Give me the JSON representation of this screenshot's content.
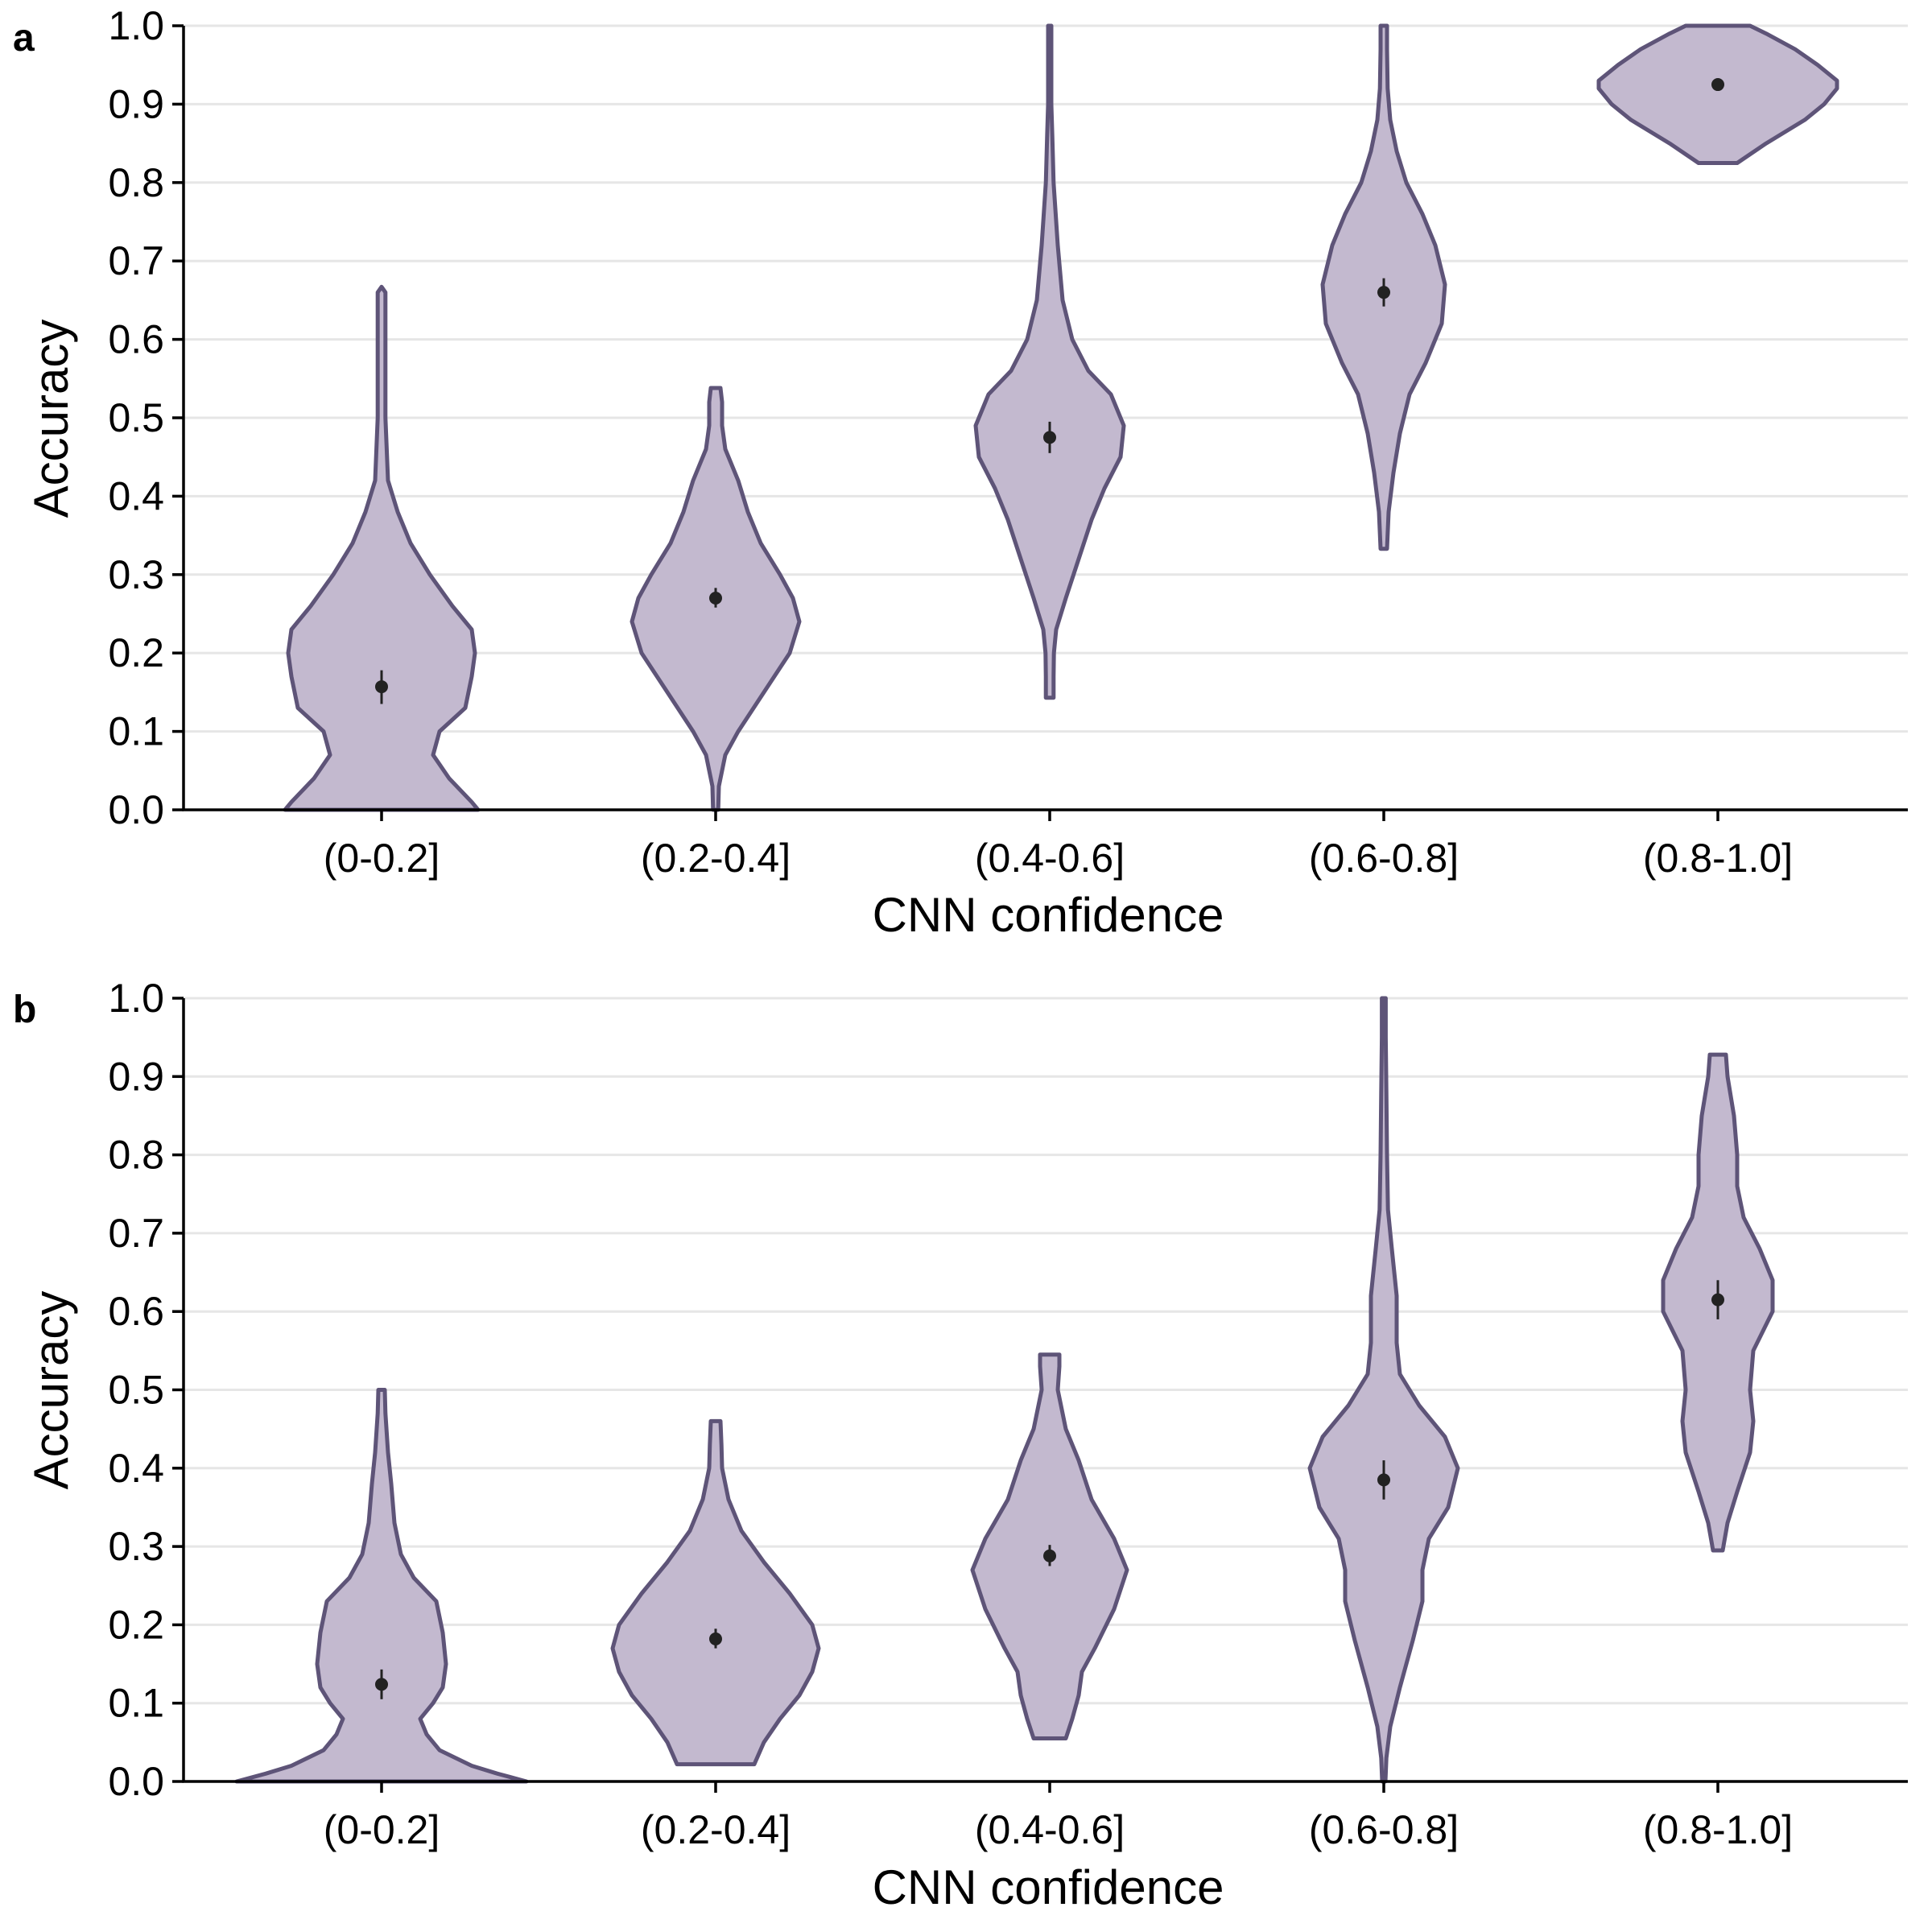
{
  "colors": {
    "violin_fill": "#c3b9cf",
    "violin_stroke": "#5e5478",
    "point": "#222222",
    "grid": "#e6e6e6"
  },
  "chart_data": [
    {
      "panel": "a",
      "type": "violin",
      "xlabel": "CNN confidence",
      "ylabel": "Accuracy",
      "ylim": [
        0,
        1
      ],
      "yticks": [
        0.0,
        0.1,
        0.2,
        0.3,
        0.4,
        0.5,
        0.6,
        0.7,
        0.8,
        0.9,
        1.0
      ],
      "ytick_labels": [
        "0.0",
        "0.1",
        "0.2",
        "0.3",
        "0.4",
        "0.5",
        "0.6",
        "0.7",
        "0.8",
        "0.9",
        "1.0"
      ],
      "grid": "horizontal",
      "categories": [
        "(0-0.2]",
        "(0.2-0.4]",
        "(0.4-0.6]",
        "(0.6-0.8]",
        "(0.8-1.0]"
      ],
      "series": [
        {
          "category": "(0-0.2]",
          "mean": 0.157,
          "ci": [
            0.135,
            0.178
          ],
          "violin": [
            [
              0.0,
              0.3
            ],
            [
              0.01,
              0.28
            ],
            [
              0.04,
              0.21
            ],
            [
              0.07,
              0.16
            ],
            [
              0.1,
              0.18
            ],
            [
              0.13,
              0.26
            ],
            [
              0.17,
              0.28
            ],
            [
              0.2,
              0.29
            ],
            [
              0.23,
              0.28
            ],
            [
              0.26,
              0.22
            ],
            [
              0.3,
              0.15
            ],
            [
              0.34,
              0.09
            ],
            [
              0.38,
              0.05
            ],
            [
              0.42,
              0.02
            ],
            [
              0.5,
              0.012
            ],
            [
              0.6,
              0.012
            ],
            [
              0.66,
              0.012
            ],
            [
              0.667,
              0.0
            ]
          ]
        },
        {
          "category": "(0.2-0.4]",
          "mean": 0.27,
          "ci": [
            0.258,
            0.283
          ],
          "violin": [
            [
              0.0,
              0.008
            ],
            [
              0.03,
              0.01
            ],
            [
              0.07,
              0.03
            ],
            [
              0.1,
              0.07
            ],
            [
              0.15,
              0.15
            ],
            [
              0.2,
              0.23
            ],
            [
              0.24,
              0.26
            ],
            [
              0.27,
              0.24
            ],
            [
              0.3,
              0.2
            ],
            [
              0.34,
              0.14
            ],
            [
              0.38,
              0.1
            ],
            [
              0.42,
              0.07
            ],
            [
              0.46,
              0.03
            ],
            [
              0.49,
              0.02
            ],
            [
              0.52,
              0.02
            ],
            [
              0.538,
              0.015
            ]
          ]
        },
        {
          "category": "(0.4-0.6]",
          "mean": 0.475,
          "ci": [
            0.455,
            0.495
          ],
          "violin": [
            [
              0.143,
              0.012
            ],
            [
              0.17,
              0.012
            ],
            [
              0.2,
              0.013
            ],
            [
              0.23,
              0.02
            ],
            [
              0.27,
              0.05
            ],
            [
              0.32,
              0.09
            ],
            [
              0.37,
              0.13
            ],
            [
              0.41,
              0.17
            ],
            [
              0.45,
              0.22
            ],
            [
              0.49,
              0.23
            ],
            [
              0.53,
              0.19
            ],
            [
              0.56,
              0.12
            ],
            [
              0.6,
              0.07
            ],
            [
              0.65,
              0.04
            ],
            [
              0.72,
              0.025
            ],
            [
              0.8,
              0.012
            ],
            [
              0.86,
              0.008
            ],
            [
              0.9,
              0.005
            ],
            [
              1.0,
              0.005
            ]
          ]
        },
        {
          "category": "(0.6-0.8]",
          "mean": 0.66,
          "ci": [
            0.642,
            0.678
          ],
          "violin": [
            [
              0.333,
              0.01
            ],
            [
              0.38,
              0.015
            ],
            [
              0.43,
              0.03
            ],
            [
              0.48,
              0.05
            ],
            [
              0.53,
              0.08
            ],
            [
              0.57,
              0.13
            ],
            [
              0.62,
              0.18
            ],
            [
              0.67,
              0.19
            ],
            [
              0.72,
              0.16
            ],
            [
              0.76,
              0.12
            ],
            [
              0.8,
              0.07
            ],
            [
              0.84,
              0.04
            ],
            [
              0.88,
              0.02
            ],
            [
              0.92,
              0.012
            ],
            [
              0.97,
              0.01
            ],
            [
              1.0,
              0.01
            ]
          ]
        },
        {
          "category": "(0.8-1.0]",
          "mean": 0.925,
          "ci": [
            0.918,
            0.931
          ],
          "violin": [
            [
              0.825,
              0.06
            ],
            [
              0.85,
              0.15
            ],
            [
              0.88,
              0.27
            ],
            [
              0.9,
              0.33
            ],
            [
              0.92,
              0.37
            ],
            [
              0.93,
              0.37
            ],
            [
              0.95,
              0.31
            ],
            [
              0.97,
              0.24
            ],
            [
              0.99,
              0.15
            ],
            [
              1.0,
              0.1
            ]
          ]
        }
      ]
    },
    {
      "panel": "b",
      "type": "violin",
      "xlabel": "CNN confidence",
      "ylabel": "Accuracy",
      "ylim": [
        0,
        1
      ],
      "yticks": [
        0.0,
        0.1,
        0.2,
        0.3,
        0.4,
        0.5,
        0.6,
        0.7,
        0.8,
        0.9,
        1.0
      ],
      "ytick_labels": [
        "0.0",
        "0.1",
        "0.2",
        "0.3",
        "0.4",
        "0.5",
        "0.6",
        "0.7",
        "0.8",
        "0.9",
        "1.0"
      ],
      "grid": "horizontal",
      "categories": [
        "(0-0.2]",
        "(0.2-0.4]",
        "(0.4-0.6]",
        "(0.6-0.8]",
        "(0.8-1.0]"
      ],
      "series": [
        {
          "category": "(0-0.2]",
          "mean": 0.124,
          "ci": [
            0.105,
            0.143
          ],
          "violin": [
            [
              0.0,
              0.45
            ],
            [
              0.01,
              0.36
            ],
            [
              0.02,
              0.28
            ],
            [
              0.04,
              0.18
            ],
            [
              0.06,
              0.14
            ],
            [
              0.08,
              0.12
            ],
            [
              0.1,
              0.16
            ],
            [
              0.12,
              0.19
            ],
            [
              0.15,
              0.2
            ],
            [
              0.19,
              0.19
            ],
            [
              0.23,
              0.17
            ],
            [
              0.26,
              0.1
            ],
            [
              0.29,
              0.06
            ],
            [
              0.33,
              0.04
            ],
            [
              0.38,
              0.03
            ],
            [
              0.42,
              0.02
            ],
            [
              0.47,
              0.012
            ],
            [
              0.5,
              0.01
            ]
          ]
        },
        {
          "category": "(0.2-0.4]",
          "mean": 0.182,
          "ci": [
            0.17,
            0.195
          ],
          "violin": [
            [
              0.022,
              0.12
            ],
            [
              0.05,
              0.15
            ],
            [
              0.08,
              0.2
            ],
            [
              0.11,
              0.26
            ],
            [
              0.14,
              0.3
            ],
            [
              0.17,
              0.32
            ],
            [
              0.2,
              0.3
            ],
            [
              0.24,
              0.23
            ],
            [
              0.28,
              0.15
            ],
            [
              0.32,
              0.08
            ],
            [
              0.36,
              0.04
            ],
            [
              0.4,
              0.02
            ],
            [
              0.43,
              0.018
            ],
            [
              0.46,
              0.015
            ]
          ]
        },
        {
          "category": "(0.4-0.6]",
          "mean": 0.288,
          "ci": [
            0.275,
            0.302
          ],
          "violin": [
            [
              0.055,
              0.05
            ],
            [
              0.08,
              0.07
            ],
            [
              0.11,
              0.09
            ],
            [
              0.14,
              0.1
            ],
            [
              0.17,
              0.14
            ],
            [
              0.22,
              0.2
            ],
            [
              0.27,
              0.24
            ],
            [
              0.31,
              0.2
            ],
            [
              0.36,
              0.13
            ],
            [
              0.41,
              0.09
            ],
            [
              0.45,
              0.05
            ],
            [
              0.5,
              0.025
            ],
            [
              0.53,
              0.03
            ],
            [
              0.545,
              0.03
            ]
          ]
        },
        {
          "category": "(0.6-0.8]",
          "mean": 0.385,
          "ci": [
            0.36,
            0.41
          ],
          "violin": [
            [
              0.0,
              0.005
            ],
            [
              0.03,
              0.008
            ],
            [
              0.07,
              0.02
            ],
            [
              0.12,
              0.05
            ],
            [
              0.18,
              0.09
            ],
            [
              0.23,
              0.12
            ],
            [
              0.27,
              0.12
            ],
            [
              0.31,
              0.14
            ],
            [
              0.35,
              0.2
            ],
            [
              0.4,
              0.23
            ],
            [
              0.44,
              0.19
            ],
            [
              0.48,
              0.11
            ],
            [
              0.52,
              0.05
            ],
            [
              0.56,
              0.04
            ],
            [
              0.62,
              0.04
            ],
            [
              0.68,
              0.025
            ],
            [
              0.73,
              0.013
            ],
            [
              0.8,
              0.01
            ],
            [
              0.88,
              0.008
            ],
            [
              0.95,
              0.006
            ],
            [
              1.0,
              0.006
            ]
          ]
        },
        {
          "category": "(0.8-1.0]",
          "mean": 0.615,
          "ci": [
            0.59,
            0.64
          ],
          "violin": [
            [
              0.295,
              0.015
            ],
            [
              0.33,
              0.03
            ],
            [
              0.37,
              0.06
            ],
            [
              0.42,
              0.1
            ],
            [
              0.46,
              0.11
            ],
            [
              0.5,
              0.1
            ],
            [
              0.55,
              0.11
            ],
            [
              0.6,
              0.17
            ],
            [
              0.64,
              0.17
            ],
            [
              0.68,
              0.13
            ],
            [
              0.72,
              0.08
            ],
            [
              0.76,
              0.06
            ],
            [
              0.8,
              0.06
            ],
            [
              0.85,
              0.05
            ],
            [
              0.9,
              0.03
            ],
            [
              0.928,
              0.025
            ]
          ]
        }
      ]
    }
  ]
}
